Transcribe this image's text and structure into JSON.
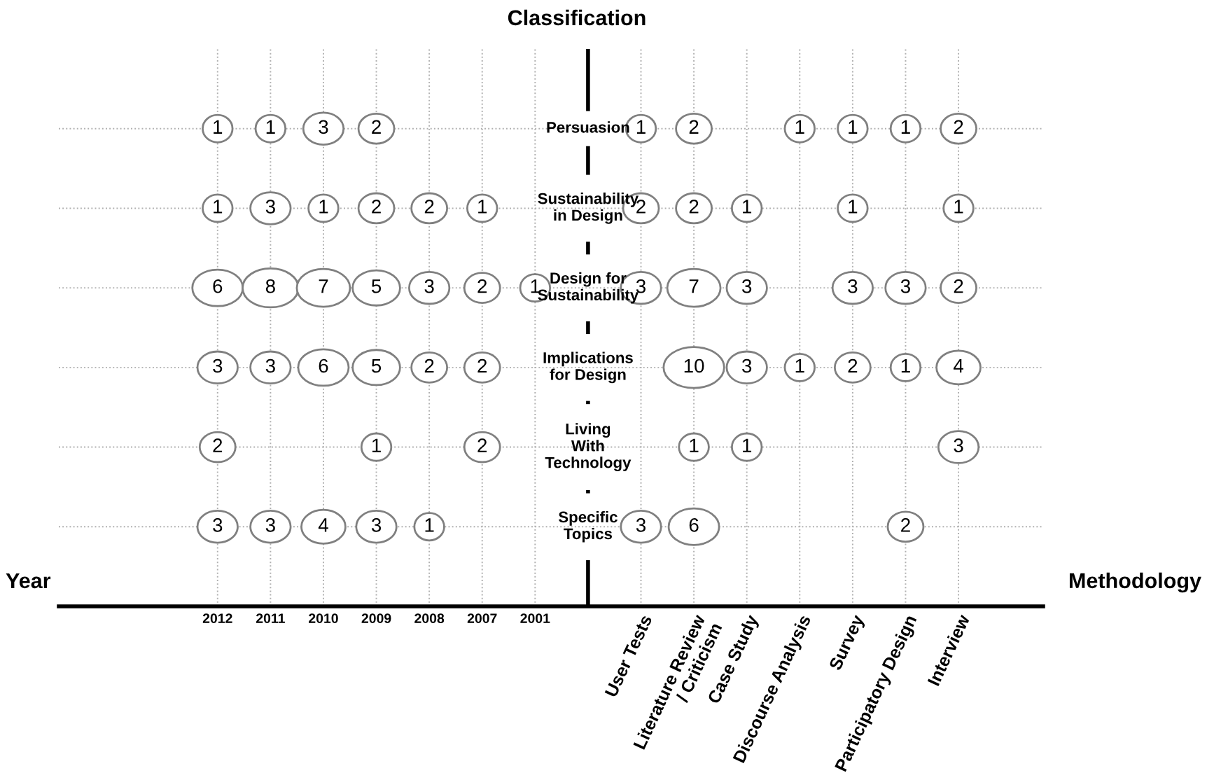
{
  "chart_data": {
    "type": "heatmap",
    "title": "Classification",
    "categories": [
      "2012",
      "2011",
      "2010",
      "2009",
      "2008",
      "2007",
      "2001",
      null,
      "User Tests",
      "Literature Review\n/ Criticism",
      "Case Study",
      "Discourse Analysis",
      "Survey",
      "Participatory Design",
      "Interview"
    ],
    "y_categories": [
      "Persuasion",
      "Sustainability\nin Design",
      "Design for\nSustainability",
      "Implications\nfor Design",
      "Living\nWith\nTechnology",
      "Specific\nTopics"
    ],
    "cells": [
      [
        1,
        1,
        3,
        2,
        null,
        null,
        null,
        null,
        1,
        2,
        null,
        1,
        1,
        1,
        2
      ],
      [
        1,
        3,
        1,
        2,
        2,
        1,
        null,
        null,
        2,
        2,
        1,
        null,
        1,
        null,
        1
      ],
      [
        6,
        8,
        7,
        5,
        3,
        2,
        1,
        null,
        3,
        7,
        3,
        null,
        3,
        3,
        2
      ],
      [
        3,
        3,
        6,
        5,
        2,
        2,
        null,
        null,
        null,
        10,
        3,
        1,
        2,
        1,
        4
      ],
      [
        2,
        null,
        null,
        1,
        null,
        2,
        null,
        null,
        null,
        1,
        1,
        null,
        null,
        null,
        3
      ],
      [
        3,
        3,
        4,
        3,
        1,
        null,
        null,
        null,
        3,
        6,
        null,
        null,
        null,
        2,
        null
      ]
    ],
    "annotations": [
      "Year",
      "Methodology"
    ],
    "data_labels": true,
    "grid": true
  }
}
